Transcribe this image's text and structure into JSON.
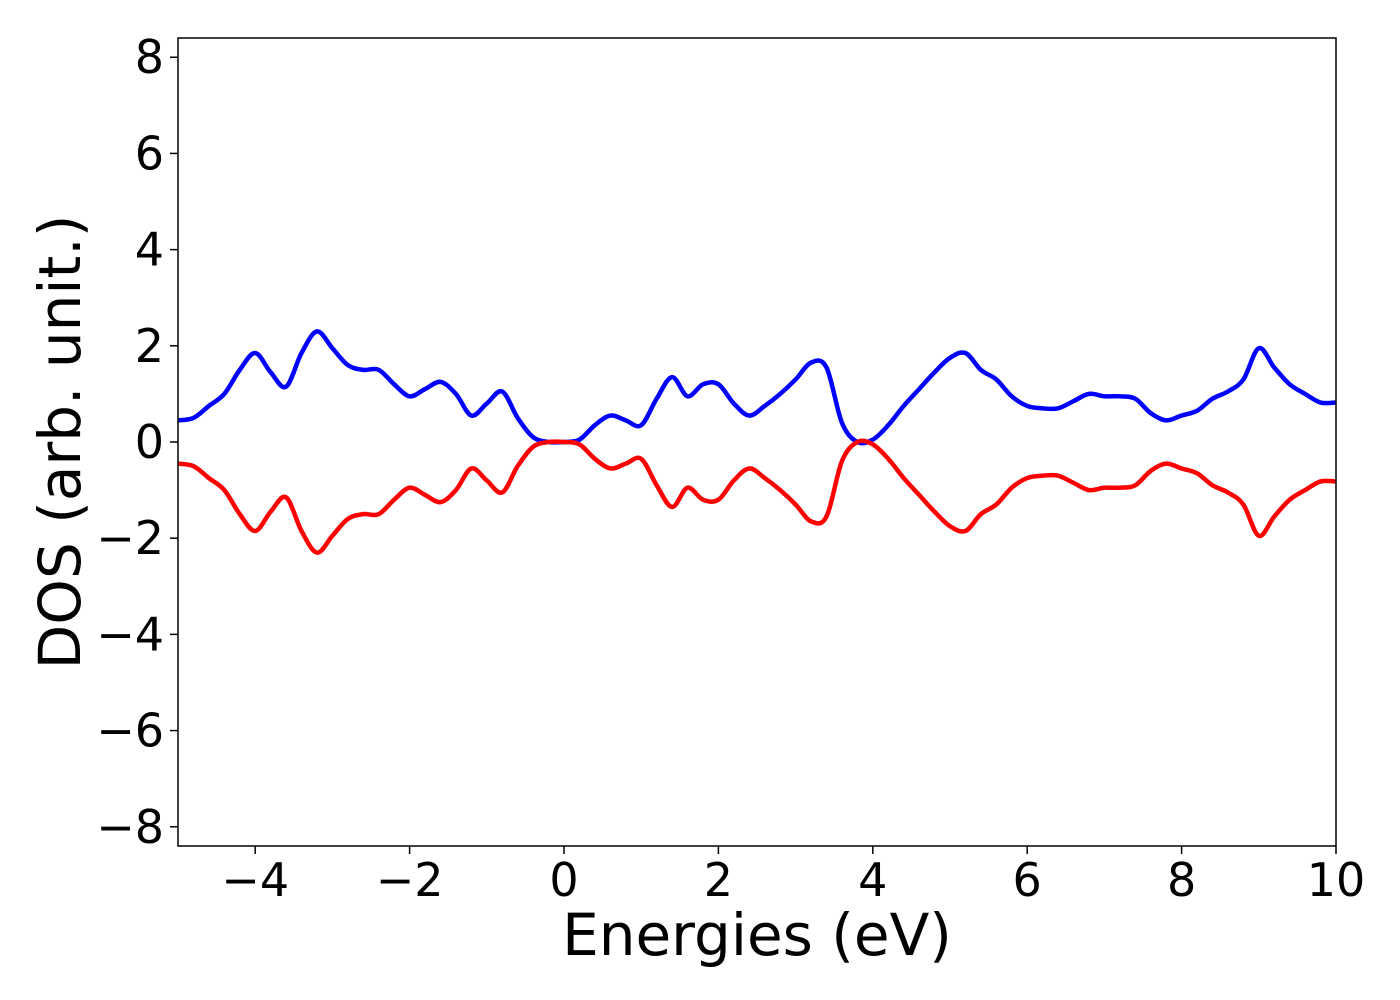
{
  "chart_data": {
    "type": "line",
    "xlabel": "Energies (eV)",
    "ylabel": "DOS (arb. unit.)",
    "xlim": [
      -5,
      10
    ],
    "ylim": [
      -8.4,
      8.4
    ],
    "xticks": [
      -4,
      -2,
      0,
      2,
      4,
      6,
      8,
      10
    ],
    "xtick_labels": [
      "−4",
      "−2",
      "0",
      "2",
      "4",
      "6",
      "8",
      "10"
    ],
    "yticks": [
      -8,
      -6,
      -4,
      -2,
      0,
      2,
      4,
      6,
      8
    ],
    "ytick_labels": [
      "−8",
      "−6",
      "−4",
      "−2",
      "0",
      "2",
      "4",
      "6",
      "8"
    ],
    "grid": false,
    "series": [
      {
        "color": "#0000ff",
        "x": [
          -5.0,
          -4.8,
          -4.6,
          -4.4,
          -4.2,
          -4.0,
          -3.8,
          -3.6,
          -3.4,
          -3.2,
          -3.0,
          -2.8,
          -2.6,
          -2.4,
          -2.2,
          -2.0,
          -1.8,
          -1.6,
          -1.4,
          -1.2,
          -1.0,
          -0.8,
          -0.6,
          -0.4,
          -0.2,
          0.0,
          0.2,
          0.4,
          0.6,
          0.8,
          1.0,
          1.2,
          1.4,
          1.6,
          1.8,
          2.0,
          2.2,
          2.4,
          2.6,
          2.8,
          3.0,
          3.2,
          3.4,
          3.6,
          3.8,
          4.0,
          4.2,
          4.4,
          4.6,
          4.8,
          5.0,
          5.2,
          5.4,
          5.6,
          5.8,
          6.0,
          6.2,
          6.4,
          6.6,
          6.8,
          7.0,
          7.2,
          7.4,
          7.6,
          7.8,
          8.0,
          8.2,
          8.4,
          8.6,
          8.8,
          9.0,
          9.2,
          9.4,
          9.6,
          9.8,
          10.0
        ],
        "y": [
          0.45,
          0.5,
          0.75,
          1.0,
          1.5,
          1.85,
          1.45,
          1.15,
          1.85,
          2.3,
          1.95,
          1.6,
          1.5,
          1.5,
          1.2,
          0.95,
          1.1,
          1.25,
          1.0,
          0.55,
          0.8,
          1.05,
          0.5,
          0.1,
          0.0,
          0.0,
          0.05,
          0.35,
          0.55,
          0.45,
          0.35,
          0.9,
          1.35,
          0.95,
          1.2,
          1.2,
          0.8,
          0.55,
          0.75,
          1.0,
          1.3,
          1.65,
          1.55,
          0.4,
          0.0,
          0.05,
          0.35,
          0.75,
          1.1,
          1.45,
          1.75,
          1.85,
          1.5,
          1.3,
          0.95,
          0.75,
          0.7,
          0.7,
          0.85,
          1.0,
          0.95,
          0.95,
          0.9,
          0.6,
          0.45,
          0.55,
          0.65,
          0.9,
          1.05,
          1.3,
          1.95,
          1.55,
          1.2,
          1.0,
          0.82,
          0.82
        ]
      },
      {
        "color": "#ff0000",
        "x": [
          -5.0,
          -4.8,
          -4.6,
          -4.4,
          -4.2,
          -4.0,
          -3.8,
          -3.6,
          -3.4,
          -3.2,
          -3.0,
          -2.8,
          -2.6,
          -2.4,
          -2.2,
          -2.0,
          -1.8,
          -1.6,
          -1.4,
          -1.2,
          -1.0,
          -0.8,
          -0.6,
          -0.4,
          -0.2,
          0.0,
          0.2,
          0.4,
          0.6,
          0.8,
          1.0,
          1.2,
          1.4,
          1.6,
          1.8,
          2.0,
          2.2,
          2.4,
          2.6,
          2.8,
          3.0,
          3.2,
          3.4,
          3.6,
          3.8,
          4.0,
          4.2,
          4.4,
          4.6,
          4.8,
          5.0,
          5.2,
          5.4,
          5.6,
          5.8,
          6.0,
          6.2,
          6.4,
          6.6,
          6.8,
          7.0,
          7.2,
          7.4,
          7.6,
          7.8,
          8.0,
          8.2,
          8.4,
          8.6,
          8.8,
          9.0,
          9.2,
          9.4,
          9.6,
          9.8,
          10.0
        ],
        "y": [
          -0.45,
          -0.5,
          -0.75,
          -1.0,
          -1.5,
          -1.85,
          -1.45,
          -1.15,
          -1.85,
          -2.3,
          -1.95,
          -1.6,
          -1.5,
          -1.5,
          -1.2,
          -0.95,
          -1.1,
          -1.25,
          -1.0,
          -0.55,
          -0.8,
          -1.05,
          -0.5,
          -0.1,
          0.0,
          0.0,
          -0.05,
          -0.35,
          -0.55,
          -0.45,
          -0.35,
          -0.9,
          -1.35,
          -0.95,
          -1.2,
          -1.2,
          -0.8,
          -0.55,
          -0.75,
          -1.0,
          -1.3,
          -1.65,
          -1.55,
          -0.4,
          0.0,
          -0.05,
          -0.35,
          -0.75,
          -1.1,
          -1.45,
          -1.75,
          -1.85,
          -1.5,
          -1.3,
          -0.95,
          -0.75,
          -0.7,
          -0.7,
          -0.85,
          -1.0,
          -0.95,
          -0.95,
          -0.9,
          -0.6,
          -0.45,
          -0.55,
          -0.65,
          -0.9,
          -1.05,
          -1.3,
          -1.95,
          -1.55,
          -1.2,
          -1.0,
          -0.82,
          -0.82
        ]
      }
    ]
  }
}
